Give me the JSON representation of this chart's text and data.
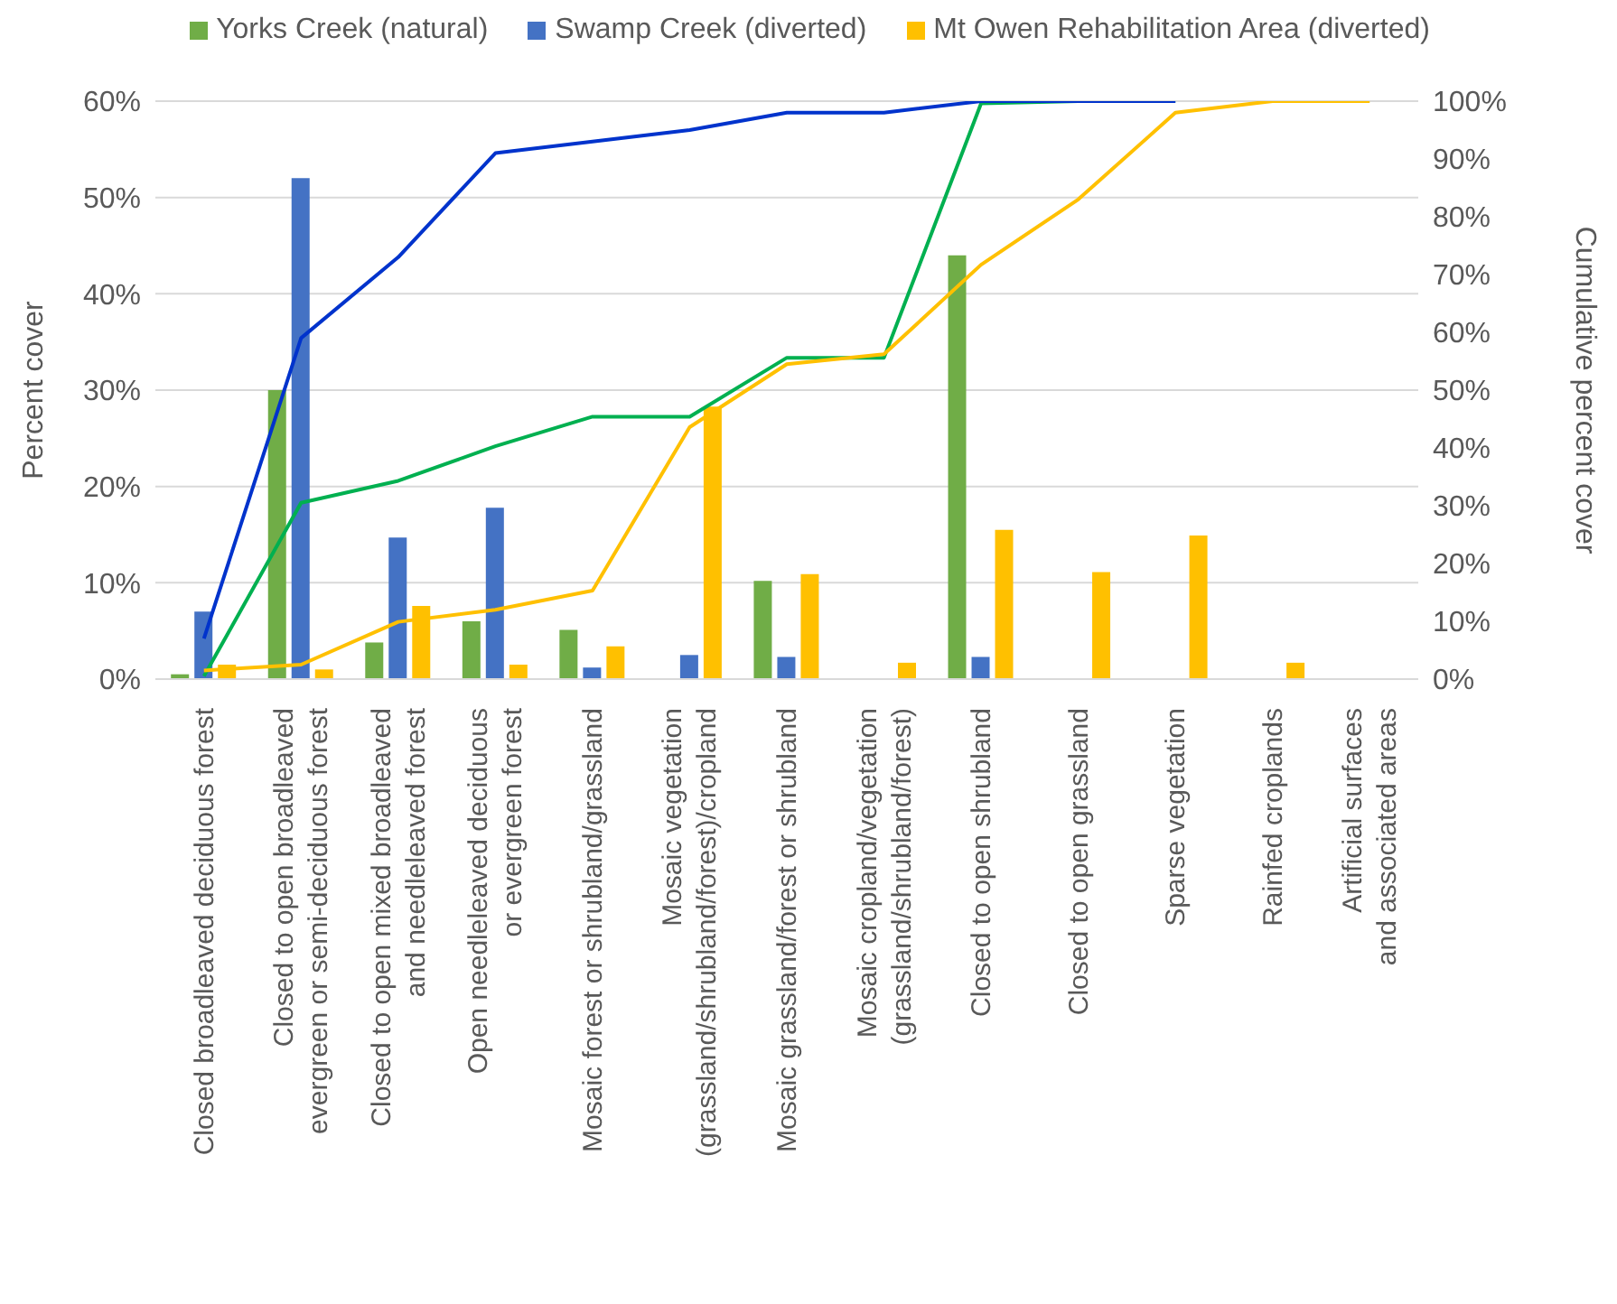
{
  "chart_data": {
    "type": "bar",
    "ylabel": "Percent cover",
    "y2label": "Cumulative percent cover",
    "categories": [
      "Closed broadleaved deciduous forest",
      "Closed to open broadleaved evergreen or semi-deciduous forest",
      "Closed to open mixed broadleaved and needleleaved forest",
      "Open needleleaved deciduous or evergreen forest",
      "Mosaic forest or shrubland/grassland",
      "Mosaic vegetation (grassland/shrubland/forest)/cropland",
      "Mosaic grassland/forest or shrubland",
      "Mosaic cropland/vegetation (grassland/shrubland/forest)",
      "Closed to open shrubland",
      "Closed to open grassland",
      "Sparse vegetation",
      "Rainfed croplands",
      "Artificial surfaces and associated areas"
    ],
    "series": [
      {
        "name": "Yorks Creek (natural)",
        "color": "#70ad47",
        "values": [
          0.5,
          30,
          3.8,
          6,
          5.1,
          0,
          10.2,
          0,
          44,
          0,
          0,
          0,
          0
        ]
      },
      {
        "name": "Swamp Creek (diverted)",
        "color": "#4472c4",
        "values": [
          7,
          52,
          14.7,
          17.8,
          1.2,
          2.5,
          2.3,
          0,
          2.3,
          0,
          0,
          0,
          0
        ]
      },
      {
        "name": "Mt Owen Rehabilitation Area (diverted)",
        "color": "#ffc000",
        "values": [
          1.5,
          1,
          7.6,
          1.5,
          3.4,
          28.3,
          10.9,
          1.7,
          15.5,
          11.1,
          14.9,
          1.7,
          0
        ]
      },
      {
        "type": "line",
        "axis": "y2",
        "color": "#00b050",
        "values": [
          0.5,
          30.5,
          34.3,
          40.3,
          45.4,
          45.4,
          55.6,
          55.6,
          99.6,
          100,
          100,
          null,
          null
        ]
      },
      {
        "type": "line",
        "axis": "y2",
        "color": "#0033cc",
        "values": [
          7,
          59,
          73,
          91,
          93,
          95,
          98,
          98,
          100,
          100,
          100,
          null,
          null
        ]
      },
      {
        "type": "line",
        "axis": "y2",
        "color": "#ffc000",
        "values": [
          1.5,
          2.5,
          9.9,
          12,
          15.3,
          43.6,
          54.5,
          56.2,
          71.7,
          83,
          98,
          100,
          100
        ]
      }
    ],
    "ylim": [
      0,
      60
    ],
    "yticks": [
      {
        "value": 0,
        "label": "0%"
      },
      {
        "value": 10,
        "label": "10%"
      },
      {
        "value": 20,
        "label": "20%"
      },
      {
        "value": 30,
        "label": "30%"
      },
      {
        "value": 40,
        "label": "40%"
      },
      {
        "value": 50,
        "label": "50%"
      },
      {
        "value": 60,
        "label": "60%"
      }
    ],
    "y2lim": [
      0,
      100
    ],
    "y2ticks": [
      {
        "value": 0,
        "label": "0%"
      },
      {
        "value": 10,
        "label": "10%"
      },
      {
        "value": 20,
        "label": "20%"
      },
      {
        "value": 30,
        "label": "30%"
      },
      {
        "value": 40,
        "label": "40%"
      },
      {
        "value": 50,
        "label": "50%"
      },
      {
        "value": 60,
        "label": "60%"
      },
      {
        "value": 70,
        "label": "70%"
      },
      {
        "value": 80,
        "label": "80%"
      },
      {
        "value": 90,
        "label": "90%"
      },
      {
        "value": 100,
        "label": "100%"
      }
    ],
    "grid": "y",
    "legend": "top",
    "marker": "none"
  }
}
